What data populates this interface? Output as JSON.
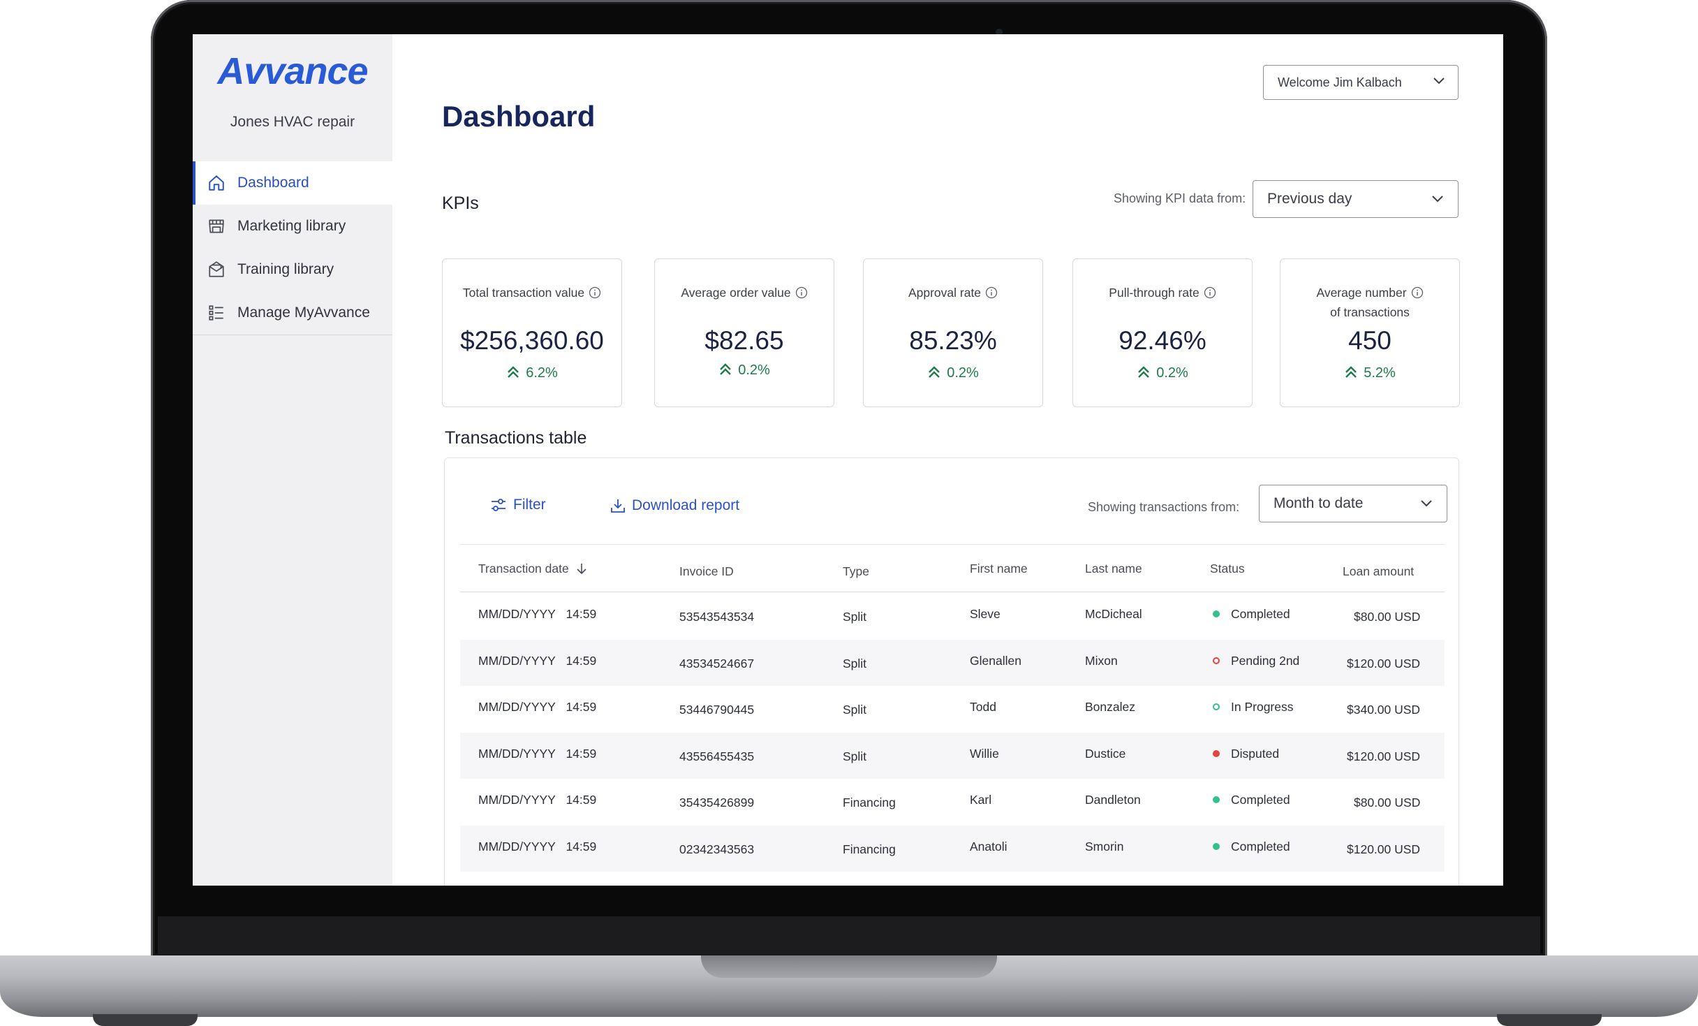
{
  "brand": {
    "logo_text": "Avvance",
    "logo_color": "#2a5bd7"
  },
  "sidebar": {
    "company": "Jones HVAC repair",
    "items": [
      {
        "label": "Dashboard",
        "icon": "home-icon",
        "active": true
      },
      {
        "label": "Marketing library",
        "icon": "storefront-icon",
        "active": false
      },
      {
        "label": "Training library",
        "icon": "envelope-icon",
        "active": false
      },
      {
        "label": "Manage MyAvvance",
        "icon": "list-icon",
        "active": false
      }
    ]
  },
  "header": {
    "welcome": "Welcome Jim Kalbach",
    "title": "Dashboard"
  },
  "kpis": {
    "heading": "KPIs",
    "filter_label": "Showing KPI data from:",
    "filter_value": "Previous day",
    "cards": [
      {
        "label": "Total transaction value",
        "value": "$256,360.60",
        "change": "6.2%"
      },
      {
        "label": "Average order value",
        "value": "$82.65",
        "change": "0.2%"
      },
      {
        "label": "Approval rate",
        "value": "85.23%",
        "change": "0.2%"
      },
      {
        "label": "Pull-through rate",
        "value": "92.46%",
        "change": "0.2%"
      },
      {
        "label": "Average number of transactions",
        "label_line1": "Average number",
        "label_line2": "of transactions",
        "value": "450",
        "change": "5.2%"
      }
    ],
    "positive_color": "#1e7a4a"
  },
  "transactions": {
    "heading": "Transactions table",
    "filter_button": "Filter",
    "download_button": "Download report",
    "filter_label": "Showing transactions from:",
    "filter_value": "Month to date",
    "columns": [
      "Transaction date",
      "Invoice ID",
      "Type",
      "First name",
      "Last name",
      "Status",
      "Loan amount"
    ],
    "rows": [
      {
        "date": "MM/DD/YYYY",
        "time": "14:59",
        "invoice": "53543543534",
        "type": "Split",
        "first": "Sleve",
        "last": "McDicheal",
        "status": "Completed",
        "status_style": "filled",
        "status_color": "#34c08a",
        "amount": "$80.00 USD"
      },
      {
        "date": "MM/DD/YYYY",
        "time": "14:59",
        "invoice": "43534524667",
        "type": "Split",
        "first": "Glenallen",
        "last": "Mixon",
        "status": "Pending 2nd",
        "status_style": "hollow",
        "status_color": "#e0453f",
        "amount": "$120.00 USD"
      },
      {
        "date": "MM/DD/YYYY",
        "time": "14:59",
        "invoice": "53446790445",
        "type": "Split",
        "first": "Todd",
        "last": "Bonzalez",
        "status": "In Progress",
        "status_style": "hollow",
        "status_color": "#34c08a",
        "amount": "$340.00 USD"
      },
      {
        "date": "MM/DD/YYYY",
        "time": "14:59",
        "invoice": "43556455435",
        "type": "Split",
        "first": "Willie",
        "last": "Dustice",
        "status": "Disputed",
        "status_style": "filled",
        "status_color": "#e0453f",
        "amount": "$120.00 USD"
      },
      {
        "date": "MM/DD/YYYY",
        "time": "14:59",
        "invoice": "35435426899",
        "type": "Financing",
        "first": "Karl",
        "last": "Dandleton",
        "status": "Completed",
        "status_style": "filled",
        "status_color": "#34c08a",
        "amount": "$80.00 USD"
      },
      {
        "date": "MM/DD/YYYY",
        "time": "14:59",
        "invoice": "02342343563",
        "type": "Financing",
        "first": "Anatoli",
        "last": "Smorin",
        "status": "Completed",
        "status_style": "filled",
        "status_color": "#34c08a",
        "amount": "$120.00 USD"
      }
    ]
  }
}
